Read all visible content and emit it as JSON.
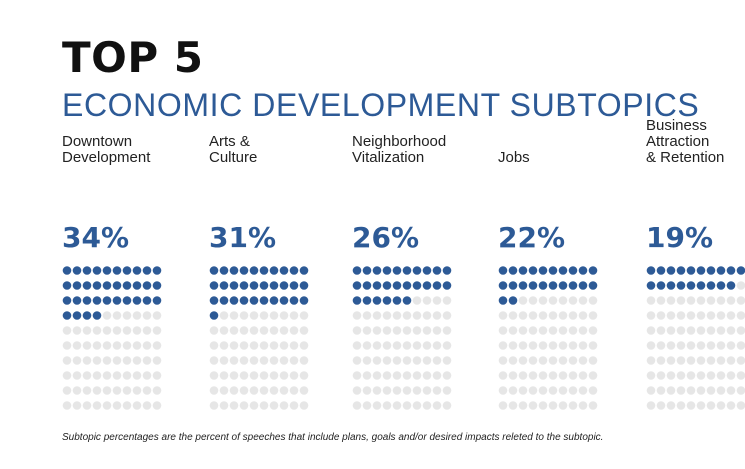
{
  "title": "TOP 5",
  "subtitle": "ECONOMIC DEVELOPMENT SUBTOPICS",
  "footnote": "Subtopic percentages are the percent of speeches that include plans, goals and/or desired impacts releted to the subtopic.",
  "colors": {
    "filled": "#2d5a96",
    "empty": "#e6e6e6",
    "title": "#111111",
    "accent": "#2d5a96"
  },
  "chart_data": {
    "type": "waffle",
    "title": "TOP 5",
    "subtitle": "ECONOMIC DEVELOPMENT SUBTOPICS",
    "categories": [
      "Downtown\nDevelopment",
      "Arts &\nCulture",
      "Neighborhood\nVitalization",
      "Jobs",
      "Business\nAttraction\n& Retention"
    ],
    "values": [
      34,
      31,
      26,
      22,
      19
    ],
    "value_labels": [
      "34%",
      "31%",
      "26%",
      "22%",
      "19%"
    ],
    "units_per_column": 100,
    "grid": {
      "columns": 10,
      "rows": 10
    },
    "xlabel": "",
    "ylabel": ""
  }
}
